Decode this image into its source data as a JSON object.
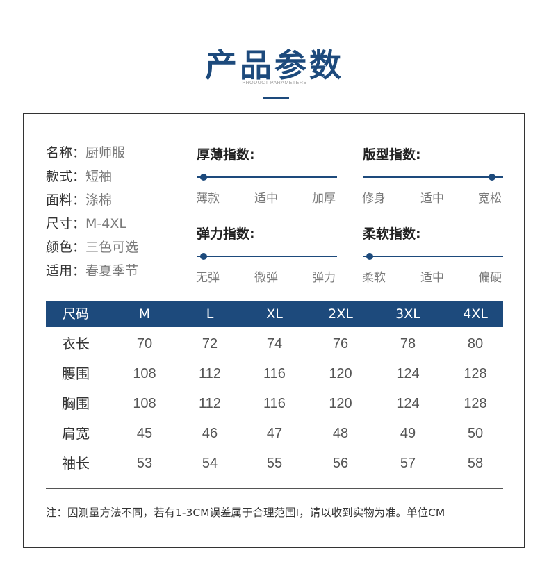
{
  "header": {
    "title": "产品参数",
    "subtitle": "PRODUCT PARAMETERS"
  },
  "info": [
    {
      "label": "名称：",
      "value": "厨师服"
    },
    {
      "label": "款式：",
      "value": "短袖"
    },
    {
      "label": "面料：",
      "value": "涤棉"
    },
    {
      "label": "尺寸：",
      "value": "M-4XL"
    },
    {
      "label": "颜色：",
      "value": "三色可选"
    },
    {
      "label": "适用：",
      "value": "春夏季节"
    }
  ],
  "indices": [
    {
      "label": "厚薄指数:",
      "ticks": [
        "薄款",
        "适中",
        "加厚"
      ],
      "level": 0.05
    },
    {
      "label": "版型指数:",
      "ticks": [
        "修身",
        "适中",
        "宽松"
      ],
      "level": 0.92
    },
    {
      "label": "弹力指数:",
      "ticks": [
        "无弹",
        "微弹",
        "弹力"
      ],
      "level": 0.05
    },
    {
      "label": "柔软指数:",
      "ticks": [
        "柔软",
        "适中",
        "偏硬"
      ],
      "level": 0.05
    }
  ],
  "size_table": {
    "headers": [
      "尺码",
      "M",
      "L",
      "XL",
      "2XL",
      "3XL",
      "4XL"
    ],
    "rows": [
      {
        "label": "衣长",
        "values": [
          "70",
          "72",
          "74",
          "76",
          "78",
          "80"
        ]
      },
      {
        "label": "腰围",
        "values": [
          "108",
          "112",
          "116",
          "120",
          "124",
          "128"
        ]
      },
      {
        "label": "胸围",
        "values": [
          "108",
          "112",
          "116",
          "120",
          "124",
          "128"
        ]
      },
      {
        "label": "肩宽",
        "values": [
          "45",
          "46",
          "47",
          "48",
          "49",
          "50"
        ]
      },
      {
        "label": "袖长",
        "values": [
          "53",
          "54",
          "55",
          "56",
          "57",
          "58"
        ]
      }
    ]
  },
  "note": "注：因测量方法不同，若有1-3CM误差属于合理范围I，请以收到实物为准。单位CM",
  "colors": {
    "accent": "#1d4a7c"
  }
}
